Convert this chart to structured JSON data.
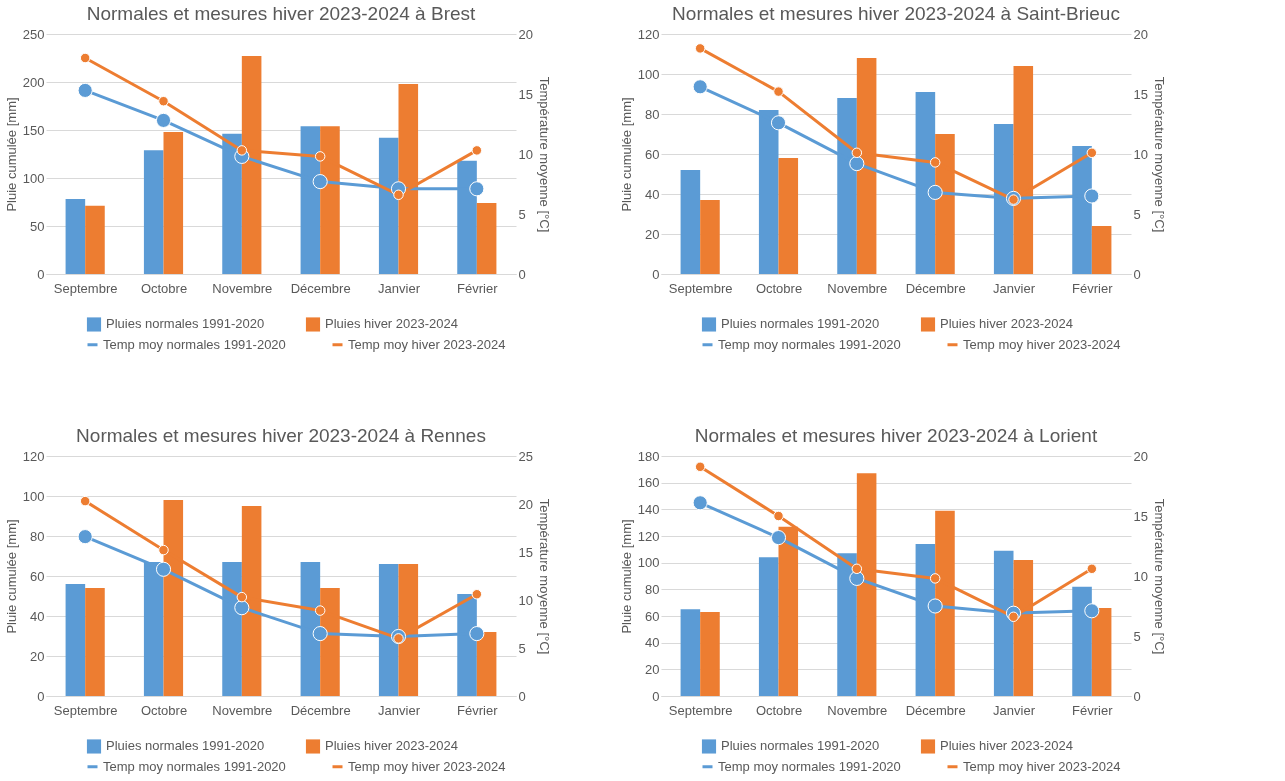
{
  "chart_data": [
    {
      "type": "bar",
      "title": "Normales et mesures hiver 2023-2024 à Brest",
      "ylabel": "Pluie cumulée [mm]",
      "y2label": "Température moyenne [°C]",
      "categories": [
        "Septembre",
        "Octobre",
        "Novembre",
        "Décembre",
        "Janvier",
        "Février"
      ],
      "ylim": [
        0,
        250
      ],
      "yticks": [
        0,
        50,
        100,
        150,
        200,
        250
      ],
      "y2lim": [
        0,
        20
      ],
      "y2ticks": [
        0,
        5,
        10,
        15,
        20
      ],
      "grid": "y",
      "legend": "bottom",
      "marker": "circle",
      "series": [
        {
          "name": "Pluies normales 1991-2020",
          "color": "#5b9bd5",
          "values": [
            78,
            129,
            146,
            154,
            142,
            118
          ]
        },
        {
          "name": "Pluies hiver 2023-2024",
          "color": "#ed7d31",
          "values": [
            71,
            148,
            227,
            154,
            198,
            74
          ]
        },
        {
          "name": "Temp moy normales 1991-2020",
          "type": "line",
          "axis": "y2",
          "color": "#5b9bd5",
          "values": [
            15.3,
            12.8,
            9.8,
            7.7,
            7.1,
            7.1
          ]
        },
        {
          "name": "Temp moy hiver 2023-2024",
          "type": "line",
          "axis": "y2",
          "color": "#ed7d31",
          "values": [
            18.0,
            14.4,
            10.3,
            9.8,
            6.6,
            10.3
          ]
        }
      ]
    },
    {
      "type": "bar",
      "title": "Normales et mesures hiver 2023-2024 à Saint-Brieuc",
      "ylabel": "Pluie cumulée [mm]",
      "y2label": "Température moyenne [°C]",
      "categories": [
        "Septembre",
        "Octobre",
        "Novembre",
        "Décembre",
        "Janvier",
        "Février"
      ],
      "ylim": [
        0,
        120
      ],
      "yticks": [
        0,
        20,
        40,
        60,
        80,
        100,
        120
      ],
      "y2lim": [
        0,
        20
      ],
      "y2ticks": [
        0,
        5,
        10,
        15,
        20
      ],
      "grid": "y",
      "legend": "bottom",
      "marker": "circle",
      "series": [
        {
          "name": "Pluies normales 1991-2020",
          "color": "#5b9bd5",
          "values": [
            52,
            82,
            88,
            91,
            75,
            64
          ]
        },
        {
          "name": "Pluies hiver 2023-2024",
          "color": "#ed7d31",
          "values": [
            37,
            58,
            108,
            70,
            104,
            24
          ]
        },
        {
          "name": "Temp moy normales 1991-2020",
          "type": "line",
          "axis": "y2",
          "color": "#5b9bd5",
          "values": [
            15.6,
            12.6,
            9.2,
            6.8,
            6.3,
            6.5
          ]
        },
        {
          "name": "Temp moy hiver 2023-2024",
          "type": "line",
          "axis": "y2",
          "color": "#ed7d31",
          "values": [
            18.8,
            15.2,
            10.1,
            9.3,
            6.2,
            10.1
          ]
        }
      ]
    },
    {
      "type": "bar",
      "title": "Normales et mesures hiver 2023-2024 à Rennes",
      "ylabel": "Pluie cumulée [mm]",
      "y2label": "Température moyenne [°C]",
      "categories": [
        "Septembre",
        "Octobre",
        "Novembre",
        "Décembre",
        "Janvier",
        "Février"
      ],
      "ylim": [
        0,
        120
      ],
      "yticks": [
        0,
        20,
        40,
        60,
        80,
        100,
        120
      ],
      "y2lim": [
        0,
        25
      ],
      "y2ticks": [
        0,
        5,
        10,
        15,
        20,
        25
      ],
      "grid": "y",
      "legend": "bottom",
      "marker": "circle",
      "series": [
        {
          "name": "Pluies normales 1991-2020",
          "color": "#5b9bd5",
          "values": [
            56,
            67,
            67,
            67,
            66,
            51
          ]
        },
        {
          "name": "Pluies hiver 2023-2024",
          "color": "#ed7d31",
          "values": [
            54,
            98,
            95,
            54,
            66,
            32
          ]
        },
        {
          "name": "Temp moy normales 1991-2020",
          "type": "line",
          "axis": "y2",
          "color": "#5b9bd5",
          "values": [
            16.6,
            13.2,
            9.2,
            6.5,
            6.2,
            6.5
          ]
        },
        {
          "name": "Temp moy hiver 2023-2024",
          "type": "line",
          "axis": "y2",
          "color": "#ed7d31",
          "values": [
            20.3,
            15.2,
            10.3,
            8.9,
            6.0,
            10.6
          ]
        }
      ]
    },
    {
      "type": "bar",
      "title": "Normales et mesures hiver 2023-2024 à Lorient",
      "ylabel": "Pluie cumulée [mm]",
      "y2label": "Température moyenne [°C]",
      "categories": [
        "Septembre",
        "Octobre",
        "Novembre",
        "Décembre",
        "Janvier",
        "Février"
      ],
      "ylim": [
        0,
        180
      ],
      "yticks": [
        0,
        20,
        40,
        60,
        80,
        100,
        120,
        140,
        160,
        180
      ],
      "y2lim": [
        0,
        20
      ],
      "y2ticks": [
        0,
        5,
        10,
        15,
        20
      ],
      "grid": "y",
      "legend": "bottom",
      "marker": "circle",
      "series": [
        {
          "name": "Pluies normales 1991-2020",
          "color": "#5b9bd5",
          "values": [
            65,
            104,
            107,
            114,
            109,
            82
          ]
        },
        {
          "name": "Pluies hiver 2023-2024",
          "color": "#ed7d31",
          "values": [
            63,
            127,
            167,
            139,
            102,
            66
          ]
        },
        {
          "name": "Temp moy normales 1991-2020",
          "type": "line",
          "axis": "y2",
          "color": "#5b9bd5",
          "values": [
            16.1,
            13.2,
            9.8,
            7.5,
            6.9,
            7.1
          ]
        },
        {
          "name": "Temp moy hiver 2023-2024",
          "type": "line",
          "axis": "y2",
          "color": "#ed7d31",
          "values": [
            19.1,
            15.0,
            10.6,
            9.8,
            6.6,
            10.6
          ]
        }
      ]
    }
  ]
}
